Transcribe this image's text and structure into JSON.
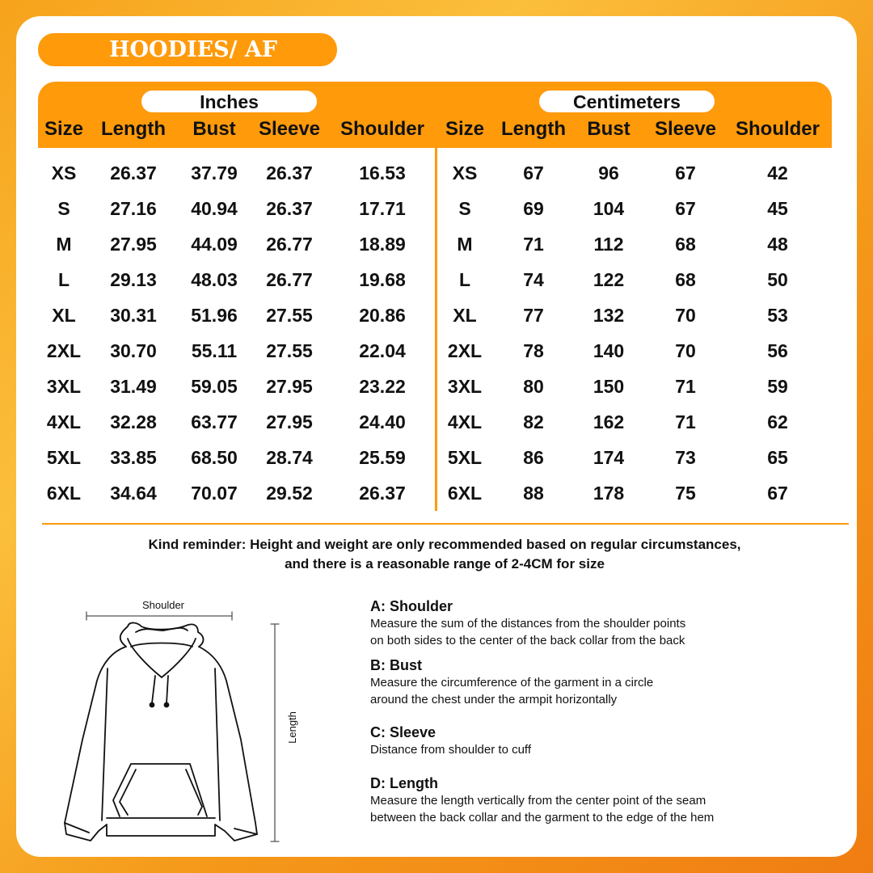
{
  "title": "HOODIES/ AF",
  "units": {
    "inches": "Inches",
    "cm": "Centimeters"
  },
  "columns": [
    "Size",
    "Length",
    "Bust",
    "Sleeve",
    "Shoulder"
  ],
  "inches_rows": [
    [
      "XS",
      "26.37",
      "37.79",
      "26.37",
      "16.53"
    ],
    [
      "S",
      "27.16",
      "40.94",
      "26.37",
      "17.71"
    ],
    [
      "M",
      "27.95",
      "44.09",
      "26.77",
      "18.89"
    ],
    [
      "L",
      "29.13",
      "48.03",
      "26.77",
      "19.68"
    ],
    [
      "XL",
      "30.31",
      "51.96",
      "27.55",
      "20.86"
    ],
    [
      "2XL",
      "30.70",
      "55.11",
      "27.55",
      "22.04"
    ],
    [
      "3XL",
      "31.49",
      "59.05",
      "27.95",
      "23.22"
    ],
    [
      "4XL",
      "32.28",
      "63.77",
      "27.95",
      "24.40"
    ],
    [
      "5XL",
      "33.85",
      "68.50",
      "28.74",
      "25.59"
    ],
    [
      "6XL",
      "34.64",
      "70.07",
      "29.52",
      "26.37"
    ]
  ],
  "cm_rows": [
    [
      "XS",
      "67",
      "96",
      "67",
      "42"
    ],
    [
      "S",
      "69",
      "104",
      "67",
      "45"
    ],
    [
      "M",
      "71",
      "112",
      "68",
      "48"
    ],
    [
      "L",
      "74",
      "122",
      "68",
      "50"
    ],
    [
      "XL",
      "77",
      "132",
      "70",
      "53"
    ],
    [
      "2XL",
      "78",
      "140",
      "70",
      "56"
    ],
    [
      "3XL",
      "80",
      "150",
      "71",
      "59"
    ],
    [
      "4XL",
      "82",
      "162",
      "71",
      "62"
    ],
    [
      "5XL",
      "86",
      "174",
      "73",
      "65"
    ],
    [
      "6XL",
      "88",
      "178",
      "75",
      "67"
    ]
  ],
  "reminder": [
    "Kind reminder: Height and weight are only recommended based on regular circumstances,",
    "and there is a reasonable range of 2-4CM for size"
  ],
  "diagram": {
    "shoulder_label": "Shoulder",
    "length_label": "Length"
  },
  "descriptions": [
    {
      "title": "A: Shoulder",
      "lines": [
        "Measure the sum of the distances from the shoulder points",
        "on both sides to the center of the back collar from the back"
      ]
    },
    {
      "title": "B: Bust",
      "lines": [
        "Measure the circumference of the garment in a circle",
        "around the chest under the armpit horizontally"
      ]
    },
    {
      "title": "C: Sleeve",
      "lines": [
        "Distance from shoulder to cuff"
      ]
    },
    {
      "title": "D: Length",
      "lines": [
        "Measure the length vertically from the center point of the seam",
        "between the back collar and the garment to the edge of the hem"
      ]
    }
  ],
  "colors": {
    "accent": "#ff9a0b",
    "text": "#111111"
  }
}
